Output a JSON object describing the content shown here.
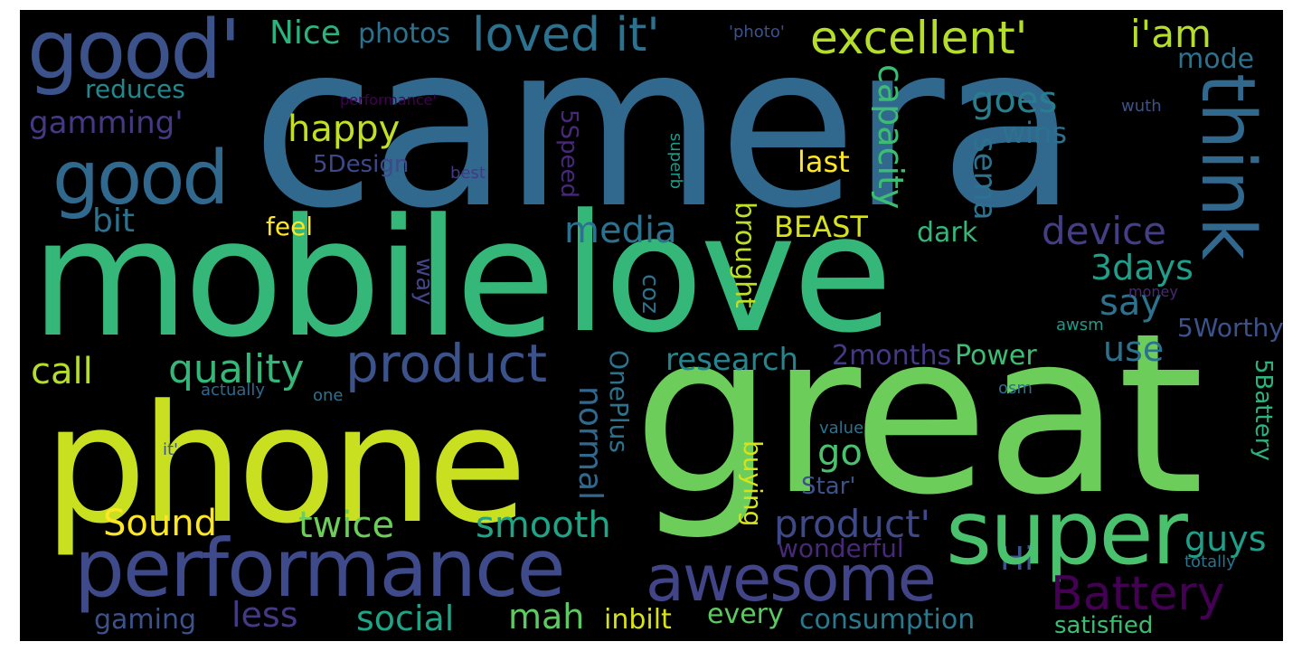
{
  "words": [
    {
      "text": "camera",
      "color": "#31688e"
    },
    {
      "text": "mobile",
      "color": "#35b779"
    },
    {
      "text": "love",
      "color": "#35b779"
    },
    {
      "text": "great",
      "color": "#6ccd5a"
    },
    {
      "text": "phone",
      "color": "#c8e020"
    },
    {
      "text": "good'",
      "color": "#3b528b"
    },
    {
      "text": "good",
      "color": "#31688e"
    },
    {
      "text": "think",
      "color": "#31688e"
    },
    {
      "text": "loved it'",
      "color": "#2c728e"
    },
    {
      "text": "excellent'",
      "color": "#b5de2b"
    },
    {
      "text": "i'am",
      "color": "#b5de2b"
    },
    {
      "text": "performance",
      "color": "#3e4a89"
    },
    {
      "text": "awesome",
      "color": "#414487"
    },
    {
      "text": "super",
      "color": "#4ac16d"
    },
    {
      "text": "Battery",
      "color": "#440154"
    },
    {
      "text": "product",
      "color": "#3b528b"
    },
    {
      "text": "quality",
      "color": "#35b779"
    },
    {
      "text": "Nice",
      "color": "#2db27d"
    },
    {
      "text": "photos",
      "color": "#2c728e"
    },
    {
      "text": "'photo'",
      "color": "#3b528b"
    },
    {
      "text": "capacity",
      "color": "#3dbc74"
    },
    {
      "text": "happy",
      "color": "#c2df23"
    },
    {
      "text": "goes",
      "color": "#287d8e"
    },
    {
      "text": "mode",
      "color": "#2c728e"
    },
    {
      "text": "reduces",
      "color": "#23888e"
    },
    {
      "text": "gamming'",
      "color": "#443983"
    },
    {
      "text": "performance'",
      "color": "#440154"
    },
    {
      "text": "wins",
      "color": "#2c728e"
    },
    {
      "text": "wuth",
      "color": "#3b528b"
    },
    {
      "text": "5Design",
      "color": "#3e4989"
    },
    {
      "text": "best",
      "color": "#443983"
    },
    {
      "text": "superb",
      "color": "#1f9a8a"
    },
    {
      "text": "last",
      "color": "#fde725"
    },
    {
      "text": "sema",
      "color": "#2c728e"
    },
    {
      "text": "5Speed",
      "color": "#482878"
    },
    {
      "text": "bit",
      "color": "#2c728e"
    },
    {
      "text": "feel",
      "color": "#fde725"
    },
    {
      "text": "media",
      "color": "#2c728e"
    },
    {
      "text": "BEAST",
      "color": "#d8e219"
    },
    {
      "text": "dark",
      "color": "#35b779"
    },
    {
      "text": "device",
      "color": "#433e85"
    },
    {
      "text": "brought",
      "color": "#bddf26"
    },
    {
      "text": "3days",
      "color": "#1f9e89"
    },
    {
      "text": "way",
      "color": "#414487"
    },
    {
      "text": "say",
      "color": "#2c728e"
    },
    {
      "text": "coz",
      "color": "#2c728e"
    },
    {
      "text": "money",
      "color": "#482878"
    },
    {
      "text": "5Worthy",
      "color": "#3b528b"
    },
    {
      "text": "awsm",
      "color": "#1f9a8a"
    },
    {
      "text": "use",
      "color": "#2c728e"
    },
    {
      "text": "call",
      "color": "#b5de2b"
    },
    {
      "text": "research",
      "color": "#25858e"
    },
    {
      "text": "2months",
      "color": "#443983"
    },
    {
      "text": "Power",
      "color": "#3dbc74"
    },
    {
      "text": "actually",
      "color": "#31688e"
    },
    {
      "text": "one",
      "color": "#2c728e"
    },
    {
      "text": "OnePlus",
      "color": "#2c728e"
    },
    {
      "text": "osm",
      "color": "#2c728e"
    },
    {
      "text": "5Battery",
      "color": "#2db27d"
    },
    {
      "text": "normal",
      "color": "#31688e"
    },
    {
      "text": "go",
      "color": "#4ac16d"
    },
    {
      "text": "it'",
      "color": "#3b528b"
    },
    {
      "text": "value",
      "color": "#2c728e"
    },
    {
      "text": "buying",
      "color": "#d8e219"
    },
    {
      "text": "Star'",
      "color": "#3b528b"
    },
    {
      "text": "Sound",
      "color": "#fde725"
    },
    {
      "text": "twice",
      "color": "#6ccd5a"
    },
    {
      "text": "smooth",
      "color": "#20a486"
    },
    {
      "text": "product'",
      "color": "#3e4989"
    },
    {
      "text": "guys",
      "color": "#1f9e89"
    },
    {
      "text": "wonderful",
      "color": "#482878"
    },
    {
      "text": "totally",
      "color": "#2c728e"
    },
    {
      "text": "Hi",
      "color": "#3b528b"
    },
    {
      "text": "less",
      "color": "#443983"
    },
    {
      "text": "social",
      "color": "#20a486"
    },
    {
      "text": "mah",
      "color": "#5ec962"
    },
    {
      "text": "gaming",
      "color": "#3b528b"
    },
    {
      "text": "inbilt",
      "color": "#d8e219"
    },
    {
      "text": "every",
      "color": "#5ec962"
    },
    {
      "text": "consumption",
      "color": "#2a788e"
    },
    {
      "text": "satisfied",
      "color": "#3dbc74"
    }
  ]
}
